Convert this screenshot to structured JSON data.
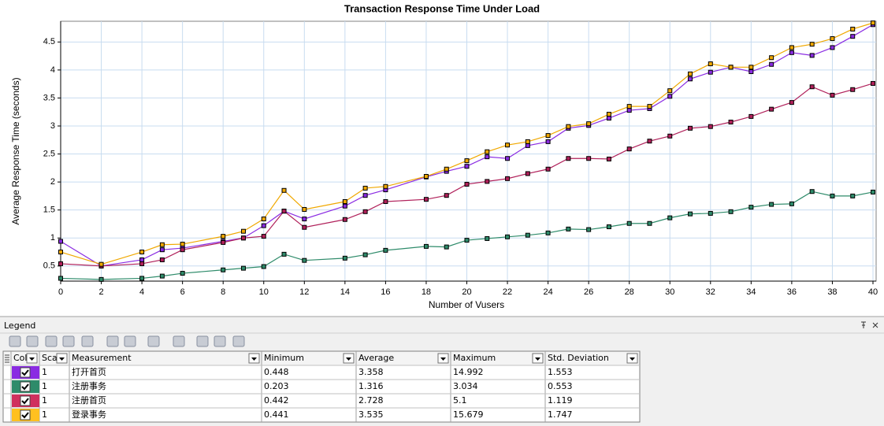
{
  "chart_data": {
    "type": "line",
    "title": "Transaction Response Time Under Load",
    "x_label": "Number of Vusers",
    "y_label": "Average Response Time (seconds)",
    "x": [
      0,
      2,
      4,
      5,
      6,
      8,
      9,
      10,
      11,
      12,
      14,
      15,
      16,
      18,
      19,
      20,
      21,
      22,
      23,
      24,
      25,
      26,
      27,
      28,
      29,
      30,
      31,
      32,
      33,
      34,
      35,
      36,
      37,
      38,
      39,
      40
    ],
    "xlim": [
      0,
      40
    ],
    "xticks": [
      0,
      2,
      4,
      6,
      8,
      10,
      12,
      14,
      16,
      18,
      20,
      22,
      24,
      26,
      28,
      30,
      32,
      34,
      36,
      38,
      40
    ],
    "ylim": [
      0.23,
      4.87
    ],
    "yticks": [
      0.5,
      1,
      1.5,
      2,
      2.5,
      3,
      3.5,
      4,
      4.5
    ],
    "grid": true,
    "series": [
      {
        "name": "打开首页",
        "color": "#8a2be2",
        "values": [
          0.94,
          0.5,
          0.61,
          0.79,
          0.82,
          0.94,
          1.0,
          1.22,
          1.48,
          1.34,
          1.57,
          1.76,
          1.86,
          2.09,
          2.19,
          2.28,
          2.45,
          2.42,
          2.65,
          2.72,
          2.96,
          3.01,
          3.14,
          3.28,
          3.31,
          3.53,
          3.84,
          3.96,
          4.05,
          3.97,
          4.1,
          4.31,
          4.26,
          4.4,
          4.6,
          4.81
        ]
      },
      {
        "name": "注册事务",
        "color": "#2e8b6a",
        "values": [
          0.28,
          0.26,
          0.28,
          0.32,
          0.37,
          0.43,
          0.46,
          0.49,
          0.71,
          0.6,
          0.64,
          0.7,
          0.78,
          0.85,
          0.84,
          0.96,
          0.99,
          1.02,
          1.05,
          1.09,
          1.16,
          1.15,
          1.2,
          1.26,
          1.26,
          1.36,
          1.43,
          1.44,
          1.47,
          1.55,
          1.6,
          1.61,
          1.83,
          1.75,
          1.75,
          1.82
        ]
      },
      {
        "name": "注册首页",
        "color": "#b0205a",
        "values": [
          0.54,
          0.5,
          0.54,
          0.61,
          0.79,
          0.92,
          1.0,
          1.03,
          1.48,
          1.19,
          1.33,
          1.47,
          1.65,
          1.69,
          1.76,
          1.96,
          2.01,
          2.06,
          2.15,
          2.23,
          2.42,
          2.42,
          2.41,
          2.59,
          2.73,
          2.82,
          2.96,
          2.99,
          3.07,
          3.17,
          3.3,
          3.42,
          3.7,
          3.55,
          3.65,
          3.76
        ]
      },
      {
        "name": "登录事务",
        "color": "#f0a800",
        "values": [
          0.75,
          0.53,
          0.75,
          0.88,
          0.89,
          1.03,
          1.12,
          1.34,
          1.85,
          1.51,
          1.65,
          1.89,
          1.92,
          2.1,
          2.23,
          2.38,
          2.54,
          2.66,
          2.72,
          2.83,
          2.99,
          3.04,
          3.21,
          3.35,
          3.35,
          3.63,
          3.93,
          4.11,
          4.05,
          4.05,
          4.22,
          4.4,
          4.46,
          4.56,
          4.73,
          4.84
        ]
      }
    ]
  },
  "legend": {
    "title": "Legend",
    "columns": [
      "Col",
      "Sca",
      "Measurement",
      "Minimum",
      "Average",
      "Maximum",
      "Std. Deviation"
    ],
    "rows": [
      {
        "color": "#8a2be2",
        "scale": "1",
        "measurement": "打开首页",
        "minimum": "0.448",
        "average": "3.358",
        "maximum": "14.992",
        "std_deviation": "1.553"
      },
      {
        "color": "#2e8b6a",
        "scale": "1",
        "measurement": "注册事务",
        "minimum": "0.203",
        "average": "1.316",
        "maximum": "3.034",
        "std_deviation": "0.553"
      },
      {
        "color": "#d0305e",
        "scale": "1",
        "measurement": "注册首页",
        "minimum": "0.442",
        "average": "2.728",
        "maximum": "5.1",
        "std_deviation": "1.119"
      },
      {
        "color": "#ffc020",
        "scale": "1",
        "measurement": "登录事务",
        "minimum": "0.441",
        "average": "3.535",
        "maximum": "15.679",
        "std_deviation": "1.747"
      }
    ]
  }
}
